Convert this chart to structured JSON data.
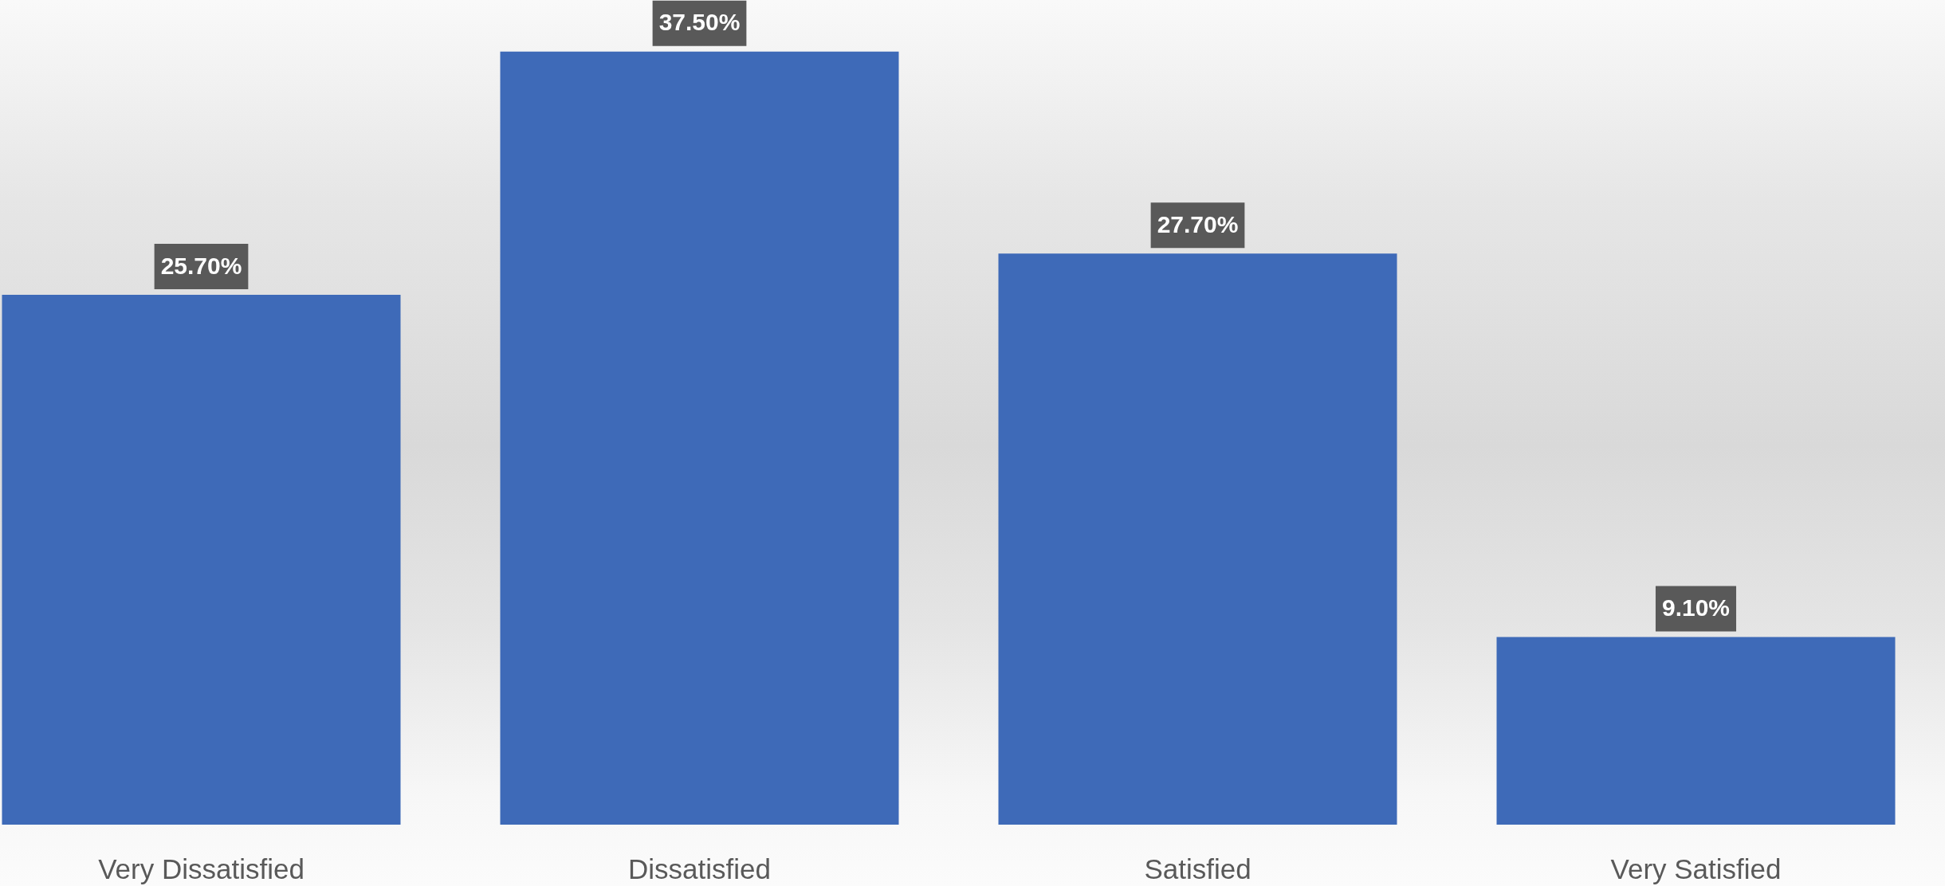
{
  "chart_data": {
    "type": "bar",
    "categories": [
      "Very Dissatisfied",
      "Dissatisfied",
      "Satisfied",
      "Very Satisfied"
    ],
    "values": [
      25.7,
      37.5,
      27.7,
      9.1
    ],
    "value_labels": [
      "25.70%",
      "37.50%",
      "27.70%",
      "9.10%"
    ],
    "color": "#3e6ab8",
    "ylim": [
      0,
      40
    ],
    "tick_labels": "x"
  }
}
